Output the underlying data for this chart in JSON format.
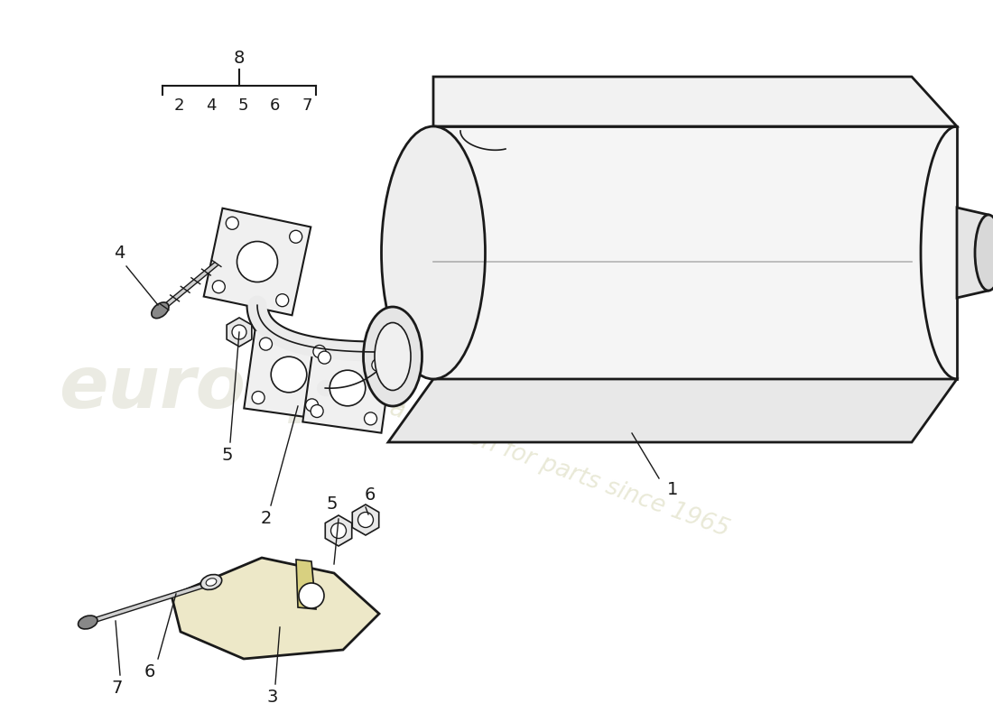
{
  "bg_color": "#ffffff",
  "line_color": "#1a1a1a",
  "watermark_color1": "#c8c8b0",
  "watermark_color2": "#d4d4b0",
  "figsize": [
    11.0,
    8.0
  ],
  "dpi": 100
}
